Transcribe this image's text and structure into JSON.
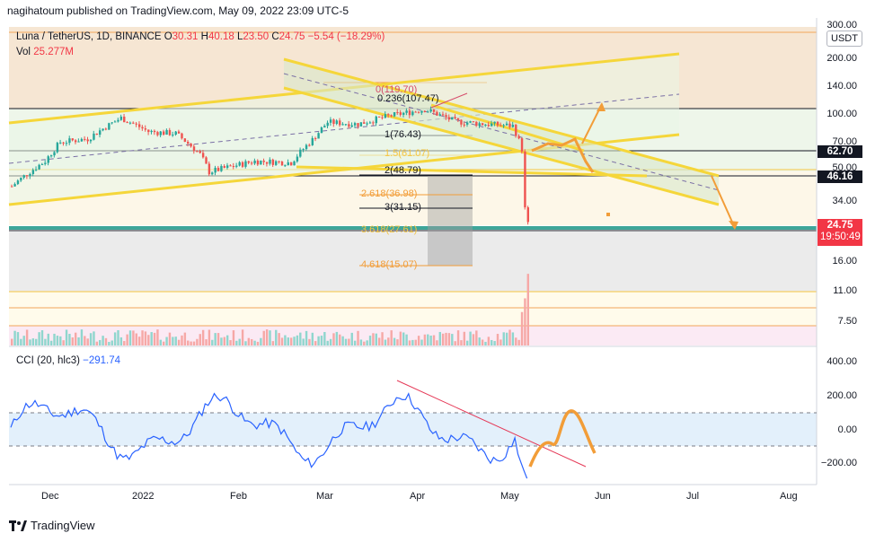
{
  "header": {
    "published": "nagihatoum published on TradingView.com, May 09, 2022 23:09 UTC-5"
  },
  "legend": {
    "symbol": "Luna / TetherUS, 1D, BINANCE",
    "o_label": "O",
    "o": "30.31",
    "h_label": "H",
    "h": "40.18",
    "l_label": "L",
    "l": "23.50",
    "c_label": "C",
    "c": "24.75",
    "change": "−5.54 (−18.29%)",
    "vol_label": "Vol",
    "vol": "25.277M"
  },
  "currency": "USDT",
  "price_axis": {
    "top_label": "300.00",
    "labels": [
      "200.00",
      "140.00",
      "100.00",
      "70.00",
      "50.00",
      "34.00",
      "16.00",
      "11.00",
      "7.50"
    ]
  },
  "badges": {
    "b1": {
      "value": "62.70",
      "color": "#131722"
    },
    "b2": {
      "value": "46.16",
      "color": "#131722"
    },
    "last": {
      "value": "24.75",
      "countdown": "19:50:49",
      "color": "#f23645"
    }
  },
  "fib_labels": [
    "0.236(107.47)",
    "0(119.70)",
    "1(76.43)",
    "1.5(61.07)",
    "2(48.79)",
    "2.618(36.98)",
    "3(31.15)",
    "3.618(27.61)",
    "4.618(15.07)"
  ],
  "cci": {
    "legend": "CCI (20, hlc3)",
    "value": "−291.74",
    "axis_labels": [
      "400.00",
      "200.00",
      "0.00",
      "−200.00"
    ]
  },
  "time_axis": [
    "Dec",
    "2022",
    "Feb",
    "Mar",
    "Apr",
    "May",
    "Jun",
    "Jul",
    "Aug"
  ],
  "footer": {
    "brand": "TradingView"
  },
  "chart_data": [
    {
      "type": "candlestick",
      "series": [
        {
          "name": "Luna / TetherUS, 1D, BINANCE"
        }
      ],
      "y_scale": "log",
      "last_ohlc": {
        "open": 30.31,
        "high": 40.18,
        "low": 23.5,
        "close": 24.75
      },
      "price_path_approx": [
        [
          "Nov 20",
          40
        ],
        [
          "Dec 01",
          55
        ],
        [
          "Dec 06",
          70
        ],
        [
          "Dec 15",
          73
        ],
        [
          "Dec 26",
          95
        ],
        [
          "Jan 04",
          80
        ],
        [
          "Jan 13",
          78
        ],
        [
          "Jan 21",
          60
        ],
        [
          "Jan 24",
          48
        ],
        [
          "Feb 08",
          55
        ],
        [
          "Feb 20",
          54
        ],
        [
          "Feb 27",
          72
        ],
        [
          "Mar 04",
          90
        ],
        [
          "Mar 14",
          88
        ],
        [
          "Mar 25",
          98
        ],
        [
          "Apr 05",
          106
        ],
        [
          "Apr 15",
          91
        ],
        [
          "Apr 25",
          88
        ],
        [
          "May 04",
          86
        ],
        [
          "May 07",
          64
        ],
        [
          "May 08",
          30
        ],
        [
          "May 09",
          24.75
        ]
      ],
      "volume": {
        "legend": "Vol",
        "last": "25.277M"
      }
    },
    {
      "type": "line",
      "series": [
        {
          "name": "CCI (20, hlc3)"
        }
      ],
      "last_value": -291.74,
      "ylim": [
        -290,
        400
      ]
    }
  ]
}
